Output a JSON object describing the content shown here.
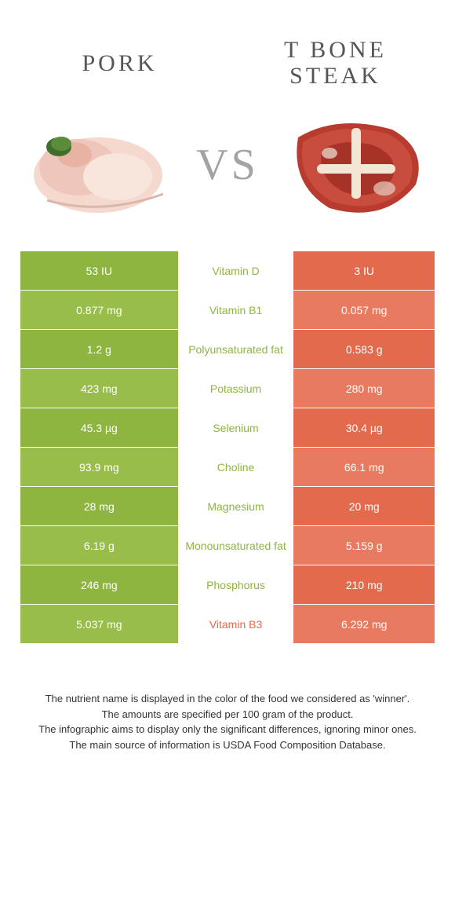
{
  "colors": {
    "left_bg": "#8eb53f",
    "left_bg_alt": "#99bd4a",
    "right_bg": "#e36a4d",
    "right_bg_alt": "#e87a5f",
    "mid_text_left": "#8eb53f",
    "mid_text_right": "#e36a4d",
    "title_color": "#555555",
    "vs_color": "#a3a3a3"
  },
  "typography": {
    "title_fontsize": 30,
    "vs_fontsize": 56,
    "cell_fontsize": 14,
    "footer_fontsize": 13
  },
  "header": {
    "left_title": "Pork",
    "right_title": "T bone steak",
    "vs": "VS"
  },
  "table": {
    "type": "comparison-table",
    "columns": [
      "left_value",
      "nutrient",
      "right_value"
    ],
    "rows": [
      {
        "left": "53 IU",
        "mid": "Vitamin D",
        "right": "3 IU",
        "winner": "left"
      },
      {
        "left": "0.877 mg",
        "mid": "Vitamin B1",
        "right": "0.057 mg",
        "winner": "left"
      },
      {
        "left": "1.2 g",
        "mid": "Polyunsaturated fat",
        "right": "0.583 g",
        "winner": "left"
      },
      {
        "left": "423 mg",
        "mid": "Potassium",
        "right": "280 mg",
        "winner": "left"
      },
      {
        "left": "45.3 µg",
        "mid": "Selenium",
        "right": "30.4 µg",
        "winner": "left"
      },
      {
        "left": "93.9 mg",
        "mid": "Choline",
        "right": "66.1 mg",
        "winner": "left"
      },
      {
        "left": "28 mg",
        "mid": "Magnesium",
        "right": "20 mg",
        "winner": "left"
      },
      {
        "left": "6.19 g",
        "mid": "Monounsaturated fat",
        "right": "5.159 g",
        "winner": "left"
      },
      {
        "left": "246 mg",
        "mid": "Phosphorus",
        "right": "210 mg",
        "winner": "left"
      },
      {
        "left": "5.037 mg",
        "mid": "Vitamin B3",
        "right": "6.292 mg",
        "winner": "right"
      }
    ]
  },
  "footer": {
    "line1": "The nutrient name is displayed in the color of the food we considered as 'winner'.",
    "line2": "The amounts are specified per 100 gram of the product.",
    "line3": "The infographic aims to display only the significant differences, ignoring minor ones.",
    "line4": "The main source of information is USDA Food Composition Database."
  }
}
